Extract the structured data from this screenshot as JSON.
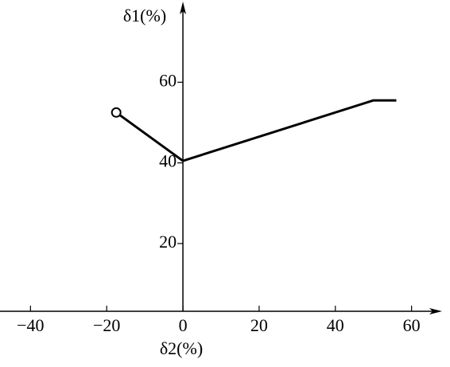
{
  "chart_data": {
    "type": "line",
    "x_label": "δ2(%)",
    "y_label": "δ1(%)",
    "x": [
      -17.5,
      0,
      50,
      56
    ],
    "series": [
      {
        "color": "#000000",
        "values": [
          52.5,
          40.5,
          55.5,
          55.5
        ]
      }
    ],
    "xlim": [
      -48,
      68
    ],
    "ylim": [
      3.2,
      80
    ],
    "xticks": [
      {
        "value": -40,
        "label": "−40"
      },
      {
        "value": -20,
        "label": "−20"
      },
      0,
      20,
      40,
      60
    ],
    "yticks": [
      20,
      40,
      60
    ],
    "grid": false
  }
}
